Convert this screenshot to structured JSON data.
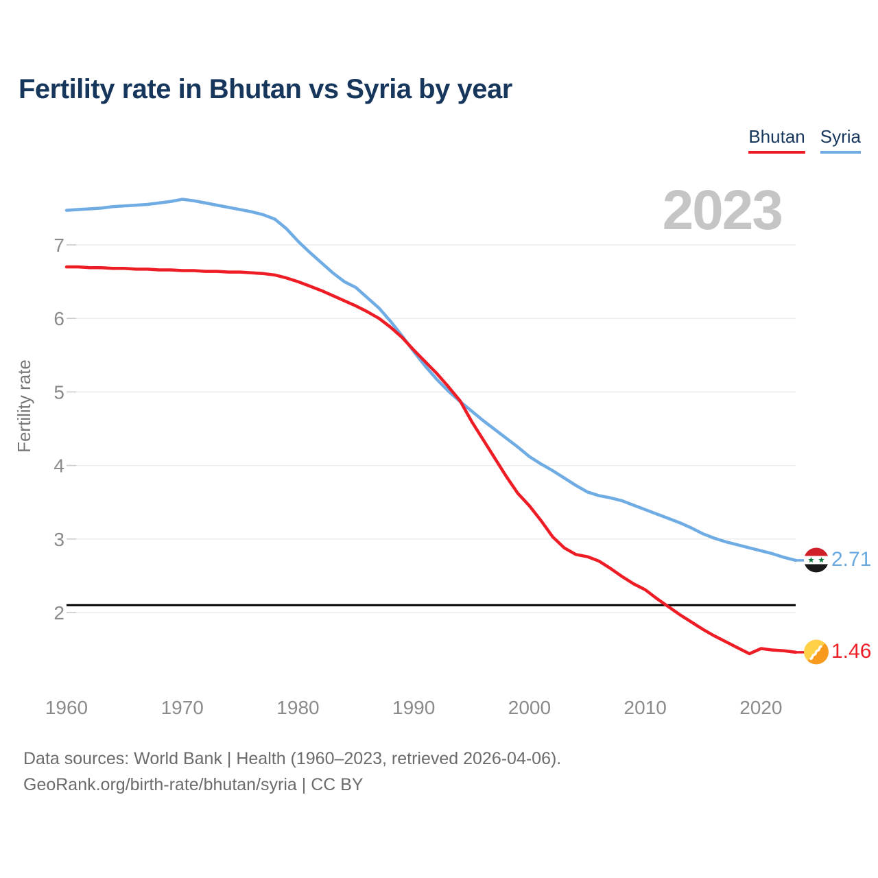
{
  "title": "Fertility rate in Bhutan vs Syria by year",
  "watermark": "2023",
  "legend": [
    {
      "label": "Bhutan",
      "color": "#ee1c25"
    },
    {
      "label": "Syria",
      "color": "#70ace4"
    }
  ],
  "chart_data": {
    "type": "line",
    "title": "Fertility rate in Bhutan vs Syria by year",
    "xlabel": "",
    "ylabel": "Fertility rate",
    "xlim": [
      1960,
      2023
    ],
    "ylim": [
      1.2,
      7.8
    ],
    "xticks": [
      1960,
      1970,
      1980,
      1990,
      2000,
      2010,
      2020
    ],
    "yticks": [
      2,
      3,
      4,
      5,
      6,
      7
    ],
    "grid": "horizontal",
    "legend_position": "top-right",
    "reference_line": 2.1,
    "x": [
      1960,
      1961,
      1962,
      1963,
      1964,
      1965,
      1966,
      1967,
      1968,
      1969,
      1970,
      1971,
      1972,
      1973,
      1974,
      1975,
      1976,
      1977,
      1978,
      1979,
      1980,
      1981,
      1982,
      1983,
      1984,
      1985,
      1986,
      1987,
      1988,
      1989,
      1990,
      1991,
      1992,
      1993,
      1994,
      1995,
      1996,
      1997,
      1998,
      1999,
      2000,
      2001,
      2002,
      2003,
      2004,
      2005,
      2006,
      2007,
      2008,
      2009,
      2010,
      2011,
      2012,
      2013,
      2014,
      2015,
      2016,
      2017,
      2018,
      2019,
      2020,
      2021,
      2022,
      2023
    ],
    "series": [
      {
        "name": "Bhutan",
        "color": "#ee1c25",
        "values": [
          6.7,
          6.7,
          6.69,
          6.69,
          6.68,
          6.68,
          6.67,
          6.67,
          6.66,
          6.66,
          6.65,
          6.65,
          6.64,
          6.64,
          6.63,
          6.63,
          6.62,
          6.61,
          6.59,
          6.55,
          6.5,
          6.44,
          6.38,
          6.31,
          6.24,
          6.17,
          6.09,
          6.0,
          5.88,
          5.74,
          5.57,
          5.41,
          5.25,
          5.07,
          4.88,
          4.6,
          4.35,
          4.1,
          3.85,
          3.62,
          3.45,
          3.25,
          3.03,
          2.88,
          2.79,
          2.76,
          2.7,
          2.6,
          2.49,
          2.39,
          2.31,
          2.19,
          2.08,
          1.97,
          1.87,
          1.77,
          1.68,
          1.6,
          1.52,
          1.44,
          1.51,
          1.49,
          1.48,
          1.46
        ]
      },
      {
        "name": "Syria",
        "color": "#70ace4",
        "values": [
          7.47,
          7.48,
          7.49,
          7.5,
          7.52,
          7.53,
          7.54,
          7.55,
          7.57,
          7.59,
          7.62,
          7.6,
          7.57,
          7.54,
          7.51,
          7.48,
          7.45,
          7.41,
          7.35,
          7.22,
          7.05,
          6.9,
          6.76,
          6.62,
          6.5,
          6.42,
          6.28,
          6.14,
          5.96,
          5.76,
          5.55,
          5.35,
          5.17,
          5.01,
          4.87,
          4.74,
          4.61,
          4.49,
          4.37,
          4.25,
          4.12,
          4.02,
          3.93,
          3.83,
          3.73,
          3.64,
          3.59,
          3.56,
          3.52,
          3.46,
          3.4,
          3.34,
          3.28,
          3.22,
          3.15,
          3.07,
          3.01,
          2.96,
          2.92,
          2.88,
          2.84,
          2.8,
          2.75,
          2.71
        ]
      }
    ],
    "end_labels": [
      {
        "series": "Bhutan",
        "value": "1.46"
      },
      {
        "series": "Syria",
        "value": "2.71"
      }
    ]
  },
  "icons": {
    "syria_flag": "syria-flag-icon",
    "bhutan_flag": "bhutan-flag-icon"
  },
  "footer": {
    "line1": "Data sources: World Bank | Health (1960–2023, retrieved 2026-04-06).",
    "line2": "GeoRank.org/birth-rate/bhutan/syria | CC BY"
  }
}
